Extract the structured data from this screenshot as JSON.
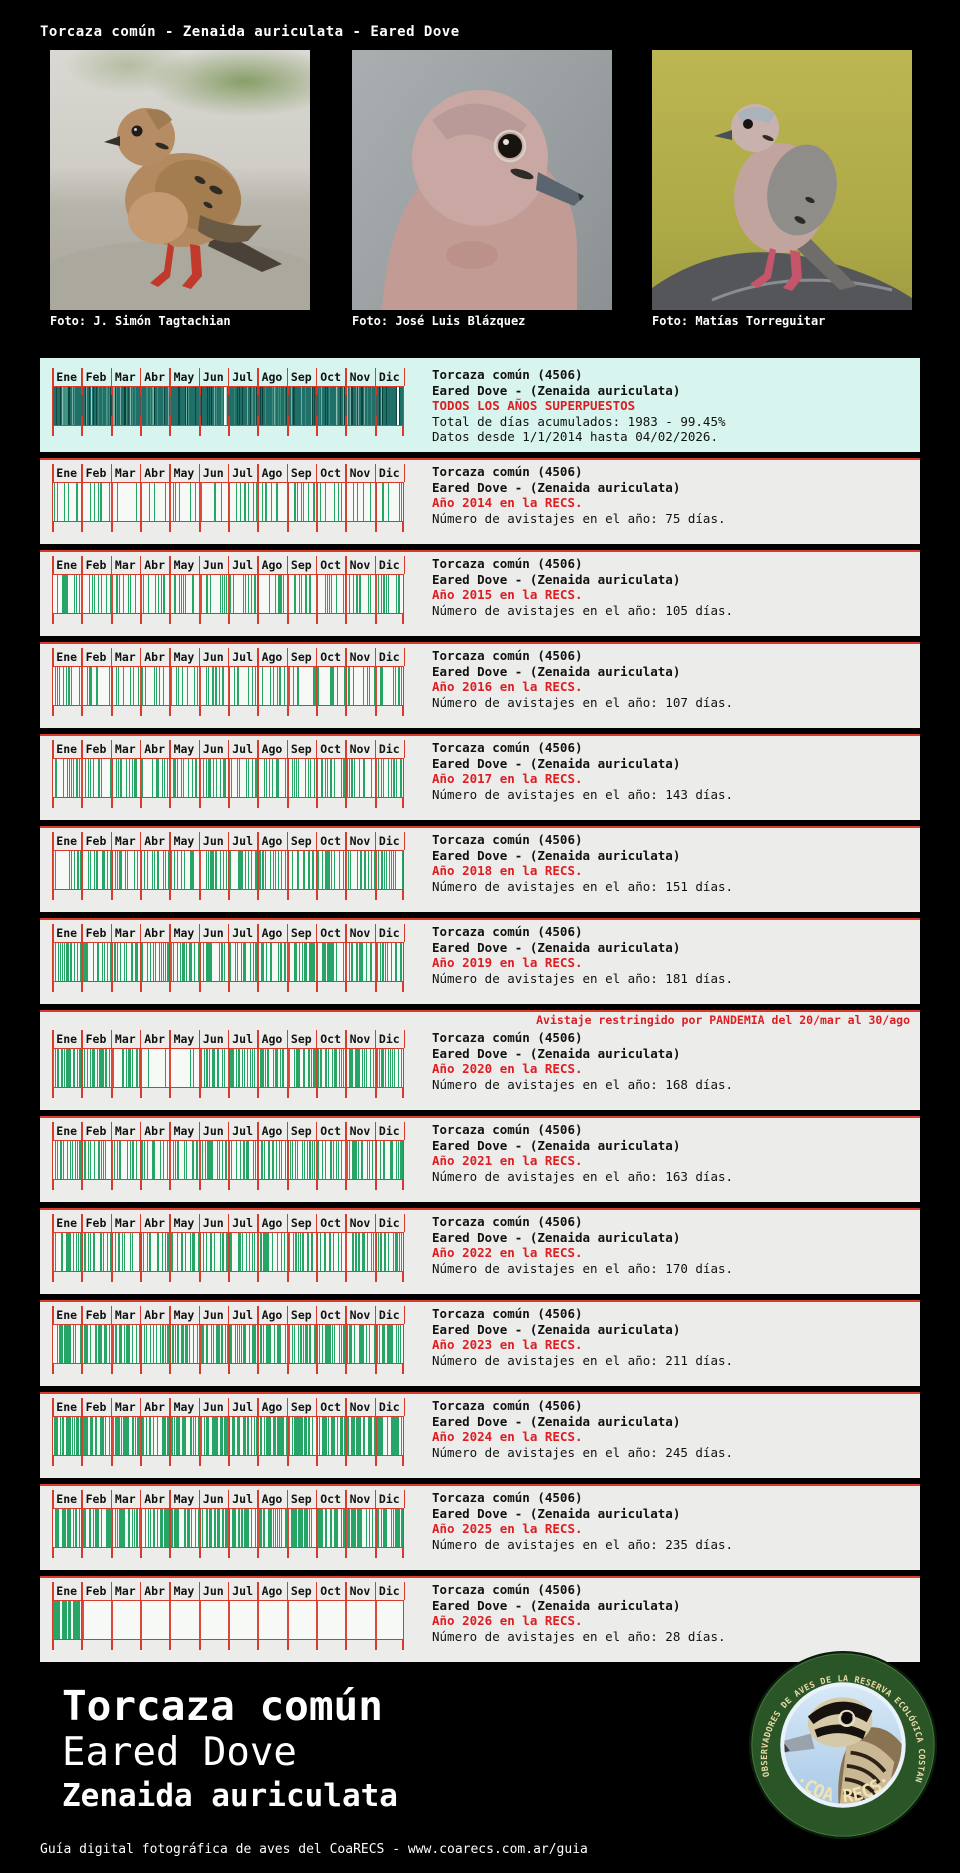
{
  "page": {
    "title": "Torcaza común - Zenaida auriculata - Eared Dove",
    "footer": {
      "common_name": "Torcaza común",
      "english_name": "Eared Dove",
      "scientific_name": "Zenaida auriculata",
      "credit_line": "Guía digital fotográfica de aves del CoaRECS - www.coarecs.com.ar/guia"
    }
  },
  "photos": [
    {
      "caption": "Foto: J. Simón Tagtachian"
    },
    {
      "caption": "Foto: José Luis Blázquez"
    },
    {
      "caption": "Foto: Matías Torreguitar"
    }
  ],
  "logo": {
    "ring_text": "CLUB DE OBSERVADORES DE AVES DE LA RESERVA ECOLÓGICA COSTANERA SUR",
    "bottom_text": "·COA RECS·"
  },
  "species": {
    "line1": "Torcaza común (4506)",
    "line2": "Eared Dove - (Zenaida auriculata)"
  },
  "summary_panel": {
    "title_line": "TODOS LOS AÑOS SUPERPUESTOS",
    "total_line": "Total de días acumulados: 1983 - 99.45%",
    "range_line": "Datos desde 1/1/2014 hasta 04/02/2026.",
    "total_days": 1983,
    "coverage_percent": 99.45
  },
  "chart_data": {
    "type": "barcode-calendar",
    "months": [
      "Ene",
      "Feb",
      "Mar",
      "Abr",
      "May",
      "Jun",
      "Jul",
      "Ago",
      "Sep",
      "Oct",
      "Nov",
      "Dic"
    ],
    "colors": {
      "bar": "#27a566",
      "overlay_fill": "#20706a",
      "grid_red": "#d93a2b",
      "accent_red": "#dd1d22",
      "summary_bg": "#d7f4ee",
      "panel_bg": "#ececea"
    },
    "years": [
      {
        "year": 2014,
        "label": "Año 2014 en la RECS.",
        "days_line": "Número de avistajes en el año: 75 días.",
        "total_days": 75,
        "monthly_days": [
          8,
          6,
          2,
          4,
          5,
          5,
          8,
          8,
          10,
          6,
          5,
          8
        ]
      },
      {
        "year": 2015,
        "label": "Año 2015 en la RECS.",
        "days_line": "Número de avistajes en el año: 105 días.",
        "total_days": 105,
        "monthly_days": [
          10,
          8,
          7,
          8,
          8,
          8,
          12,
          9,
          8,
          8,
          10,
          9
        ]
      },
      {
        "year": 2016,
        "label": "Año 2016 en la RECS.",
        "days_line": "Número de avistajes en el año: 107 días.",
        "total_days": 107,
        "monthly_days": [
          10,
          9,
          8,
          8,
          8,
          9,
          9,
          9,
          9,
          9,
          10,
          9
        ]
      },
      {
        "year": 2017,
        "label": "Año 2017 en la RECS.",
        "days_line": "Número de avistajes en el año: 143 días.",
        "total_days": 143,
        "monthly_days": [
          13,
          11,
          11,
          11,
          12,
          12,
          12,
          12,
          12,
          12,
          12,
          13
        ]
      },
      {
        "year": 2018,
        "label": "Año 2018 en la RECS.",
        "days_line": "Número de avistajes en el año: 151 días.",
        "total_days": 151,
        "monthly_days": [
          13,
          12,
          12,
          12,
          12,
          13,
          13,
          13,
          12,
          13,
          13,
          13
        ]
      },
      {
        "year": 2019,
        "label": "Año 2019 en la RECS.",
        "days_line": "Número de avistajes en el año: 181 días.",
        "total_days": 181,
        "monthly_days": [
          17,
          15,
          14,
          14,
          15,
          15,
          15,
          15,
          15,
          15,
          15,
          16
        ]
      },
      {
        "year": 2020,
        "label": "Año 2020 en la RECS.",
        "days_line": "Número de avistajes en el año: 168 días.",
        "total_days": 168,
        "monthly_days": [
          20,
          18,
          14,
          2,
          2,
          13,
          16,
          16,
          16,
          17,
          17,
          17
        ],
        "note": "Avistaje restringido por PANDEMIA del 20/mar al 30/ago"
      },
      {
        "year": 2021,
        "label": "Año 2021 en la RECS.",
        "days_line": "Número de avistajes en el año: 163 días.",
        "total_days": 163,
        "monthly_days": [
          15,
          13,
          13,
          12,
          13,
          13,
          14,
          14,
          13,
          14,
          14,
          15
        ]
      },
      {
        "year": 2022,
        "label": "Año 2022 en la RECS.",
        "days_line": "Número de avistajes en el año: 170 días.",
        "total_days": 170,
        "monthly_days": [
          15,
          14,
          14,
          13,
          14,
          14,
          14,
          15,
          14,
          14,
          14,
          15
        ]
      },
      {
        "year": 2023,
        "label": "Año 2023 en la RECS.",
        "days_line": "Número de avistajes en el año: 211 días.",
        "total_days": 211,
        "monthly_days": [
          18,
          16,
          17,
          17,
          18,
          17,
          18,
          18,
          17,
          18,
          18,
          19
        ]
      },
      {
        "year": 2024,
        "label": "Año 2024 en la RECS.",
        "days_line": "Número de avistajes en el año: 245 días.",
        "total_days": 245,
        "monthly_days": [
          21,
          19,
          20,
          20,
          20,
          20,
          21,
          21,
          20,
          21,
          21,
          21
        ]
      },
      {
        "year": 2025,
        "label": "Año 2025 en la RECS.",
        "days_line": "Número de avistajes en el año: 235 días.",
        "total_days": 235,
        "monthly_days": [
          20,
          18,
          19,
          19,
          20,
          19,
          20,
          20,
          19,
          20,
          20,
          21
        ]
      },
      {
        "year": 2026,
        "label": "Año 2026 en la RECS.",
        "days_line": "Número de avistajes en el año: 28 días.",
        "total_days": 28,
        "monthly_days": [
          27,
          1,
          0,
          0,
          0,
          0,
          0,
          0,
          0,
          0,
          0,
          0
        ]
      }
    ]
  }
}
